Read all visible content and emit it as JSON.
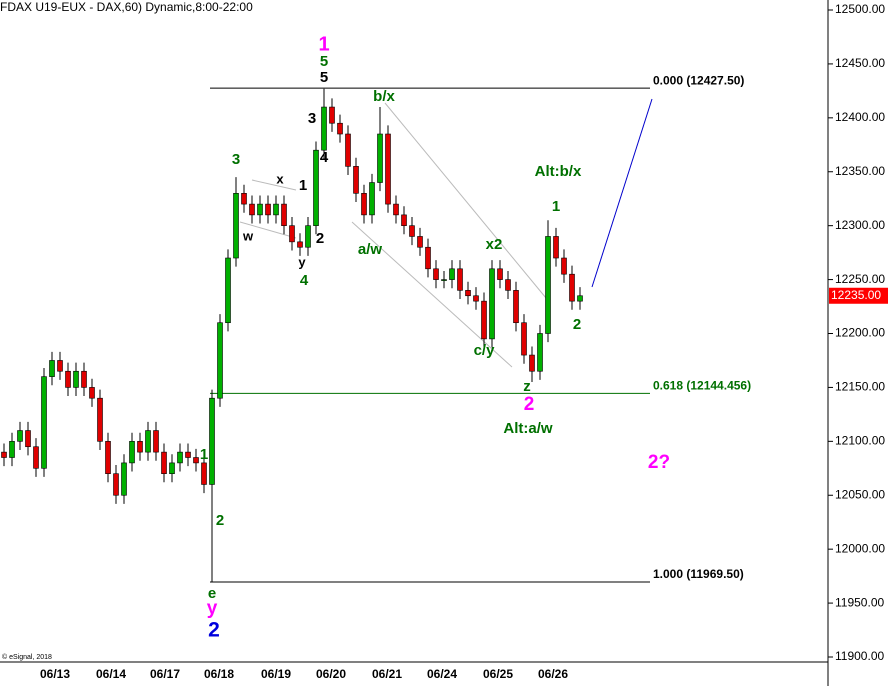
{
  "chart_data": {
    "type": "candlestick",
    "title": "(FDAX U19-EUX - DAX,60) Dynamic,8:00-22:00",
    "copyright": "© eSignal, 2018",
    "categories": [
      "06/13",
      "06/14",
      "06/17",
      "06/18",
      "06/19",
      "06/20",
      "06/21",
      "06/24",
      "06/25",
      "06/26"
    ],
    "candles": [
      [
        12090,
        12098,
        12077,
        12085
      ],
      [
        12085,
        12108,
        12077,
        12100
      ],
      [
        12100,
        12118,
        12092,
        12110
      ],
      [
        12110,
        12118,
        12087,
        12095
      ],
      [
        12095,
        12103,
        12067,
        12075
      ],
      [
        12075,
        12168,
        12067,
        12160
      ],
      [
        12160,
        12183,
        12152,
        12175
      ],
      [
        12175,
        12183,
        12157,
        12165
      ],
      [
        12165,
        12173,
        12142,
        12150
      ],
      [
        12150,
        12173,
        12142,
        12165
      ],
      [
        12165,
        12173,
        12142,
        12150
      ],
      [
        12150,
        12158,
        12132,
        12140
      ],
      [
        12140,
        12148,
        12092,
        12100
      ],
      [
        12100,
        12108,
        12062,
        12070
      ],
      [
        12070,
        12078,
        12042,
        12050
      ],
      [
        12050,
        12088,
        12042,
        12080
      ],
      [
        12080,
        12108,
        12072,
        12100
      ],
      [
        12100,
        12108,
        12082,
        12090
      ],
      [
        12090,
        12118,
        12082,
        12110
      ],
      [
        12110,
        12118,
        12082,
        12090
      ],
      [
        12090,
        12098,
        12062,
        12070
      ],
      [
        12070,
        12088,
        12062,
        12080
      ],
      [
        12080,
        12098,
        12072,
        12090
      ],
      [
        12090,
        12098,
        12077,
        12085
      ],
      [
        12085,
        12093,
        12072,
        12080
      ],
      [
        12080,
        12088,
        12052,
        12060
      ],
      [
        12060,
        12148,
        11970,
        12140
      ],
      [
        12140,
        12218,
        12132,
        12210
      ],
      [
        12210,
        12278,
        12202,
        12270
      ],
      [
        12270,
        12345,
        12262,
        12330
      ],
      [
        12330,
        12338,
        12312,
        12320
      ],
      [
        12320,
        12328,
        12302,
        12310
      ],
      [
        12310,
        12328,
        12302,
        12320
      ],
      [
        12320,
        12328,
        12302,
        12310
      ],
      [
        12310,
        12328,
        12302,
        12320
      ],
      [
        12320,
        12328,
        12292,
        12300
      ],
      [
        12300,
        12308,
        12277,
        12285
      ],
      [
        12285,
        12293,
        12272,
        12280
      ],
      [
        12280,
        12308,
        12272,
        12300
      ],
      [
        12300,
        12378,
        12292,
        12370
      ],
      [
        12370,
        12427,
        12362,
        12410
      ],
      [
        12410,
        12418,
        12387,
        12395
      ],
      [
        12395,
        12403,
        12377,
        12385
      ],
      [
        12385,
        12393,
        12347,
        12355
      ],
      [
        12355,
        12363,
        12322,
        12330
      ],
      [
        12330,
        12338,
        12302,
        12310
      ],
      [
        12310,
        12348,
        12302,
        12340
      ],
      [
        12340,
        12410,
        12332,
        12385
      ],
      [
        12385,
        12393,
        12312,
        12320
      ],
      [
        12320,
        12328,
        12302,
        12310
      ],
      [
        12310,
        12318,
        12292,
        12300
      ],
      [
        12300,
        12308,
        12282,
        12290
      ],
      [
        12290,
        12298,
        12272,
        12280
      ],
      [
        12280,
        12288,
        12252,
        12260
      ],
      [
        12260,
        12268,
        12242,
        12250
      ],
      [
        12250,
        12258,
        12242,
        12250
      ],
      [
        12250,
        12268,
        12242,
        12260
      ],
      [
        12260,
        12268,
        12232,
        12240
      ],
      [
        12240,
        12248,
        12227,
        12235
      ],
      [
        12235,
        12243,
        12222,
        12230
      ],
      [
        12230,
        12238,
        12187,
        12195
      ],
      [
        12195,
        12268,
        12187,
        12260
      ],
      [
        12260,
        12268,
        12242,
        12250
      ],
      [
        12250,
        12258,
        12232,
        12240
      ],
      [
        12240,
        12248,
        12202,
        12210
      ],
      [
        12210,
        12218,
        12172,
        12180
      ],
      [
        12180,
        12188,
        12155,
        12165
      ],
      [
        12165,
        12208,
        12157,
        12200
      ],
      [
        12200,
        12305,
        12192,
        12290
      ],
      [
        12290,
        12298,
        12262,
        12270
      ],
      [
        12270,
        12278,
        12247,
        12255
      ],
      [
        12255,
        12263,
        12222,
        12230
      ],
      [
        12230,
        12243,
        12222,
        12235
      ]
    ],
    "up_color": "#00b000",
    "down_color": "#e00000",
    "ylim": [
      11900,
      12500
    ],
    "yticks": [
      {
        "value": 12500,
        "label": "12500.00"
      },
      {
        "value": 12450,
        "label": "12450.00"
      },
      {
        "value": 12400,
        "label": "12400.00"
      },
      {
        "value": 12350,
        "label": "12350.00"
      },
      {
        "value": 12300,
        "label": "12300.00"
      },
      {
        "value": 12250,
        "label": "12250.00"
      },
      {
        "value": 12200,
        "label": "12200.00"
      },
      {
        "value": 12150,
        "label": "12150.00"
      },
      {
        "value": 12100,
        "label": "12100.00"
      },
      {
        "value": 12050,
        "label": "12050.00"
      },
      {
        "value": 12000,
        "label": "12000.00"
      },
      {
        "value": 11950,
        "label": "11950.00"
      },
      {
        "value": 11900,
        "label": "11900.00"
      }
    ],
    "last_price": {
      "value": 12235,
      "label": "12235.00",
      "color": "#ff0000"
    },
    "levels": [
      {
        "value": 12427.5,
        "label": "0.000 (12427.50)",
        "color": "#000000"
      },
      {
        "value": 12144.456,
        "label": "0.618 (12144.456)",
        "color": "#007000"
      },
      {
        "value": 11969.5,
        "label": "1.000 (11969.50)",
        "color": "#000000"
      }
    ],
    "annotations": [
      {
        "text": "1",
        "color": "#ff00ff"
      },
      {
        "text": "5",
        "color": "#007000"
      },
      {
        "text": "5",
        "color": "#000000"
      },
      {
        "text": "b/x",
        "color": "#007000"
      },
      {
        "text": "3",
        "color": "#007000"
      },
      {
        "text": "x",
        "color": "#000000"
      },
      {
        "text": "1",
        "color": "#000000"
      },
      {
        "text": "w",
        "color": "#000000"
      },
      {
        "text": "2",
        "color": "#000000"
      },
      {
        "text": "y",
        "color": "#000000"
      },
      {
        "text": "4",
        "color": "#007000"
      },
      {
        "text": "3",
        "color": "#000000"
      },
      {
        "text": "4",
        "color": "#000000"
      },
      {
        "text": "a/w",
        "color": "#007000"
      },
      {
        "text": "x2",
        "color": "#007000"
      },
      {
        "text": "c/y",
        "color": "#007000"
      },
      {
        "text": "z",
        "color": "#007000"
      },
      {
        "text": "2",
        "color": "#ff00ff"
      },
      {
        "text": "Alt:a/w",
        "color": "#007000"
      },
      {
        "text": "Alt:b/x",
        "color": "#007000"
      },
      {
        "text": "1",
        "color": "#007000"
      },
      {
        "text": "2",
        "color": "#007000"
      },
      {
        "text": "2?",
        "color": "#ff00ff"
      },
      {
        "text": "1",
        "color": "#007000"
      },
      {
        "text": "2",
        "color": "#007000"
      },
      {
        "text": "e",
        "color": "#007000"
      },
      {
        "text": "y",
        "color": "#ff00ff"
      },
      {
        "text": "2",
        "color": "#0000dd"
      }
    ]
  }
}
